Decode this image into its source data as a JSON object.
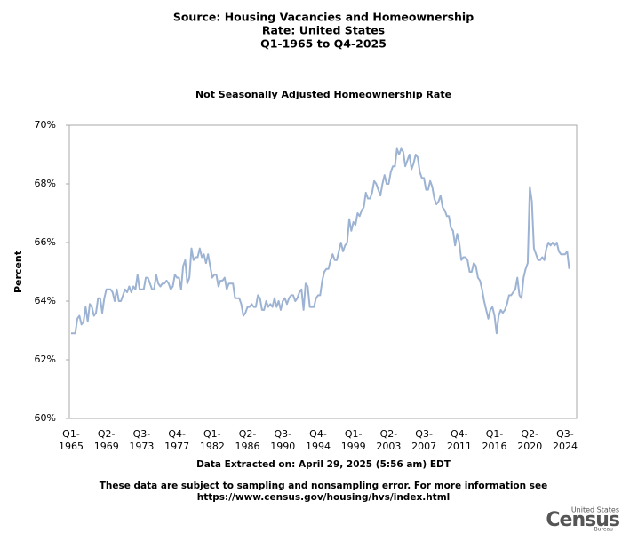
{
  "chart_data": {
    "type": "line",
    "title": [
      "Source: Housing Vacancies and Homeownership",
      "Rate: United States",
      "Q1-1965 to Q4-2025"
    ],
    "subtitle": "Not Seasonally Adjusted Homeownership Rate",
    "y_label": "Percent",
    "extracted": "Data Extracted on: April 29, 2025 (5:56 am) EDT",
    "note": [
      "These data are subject to sampling and nonsampling error. For more information see",
      "https://www.census.gov/housing/hvs/index.html"
    ],
    "logo": [
      "United States",
      "Census",
      "Bureau"
    ],
    "color": "#9db3d4",
    "ylim": [
      60,
      70
    ],
    "yticks": [
      {
        "value": 60,
        "label": "60%"
      },
      {
        "value": 62,
        "label": "62%"
      },
      {
        "value": 64,
        "label": "64%"
      },
      {
        "value": 66,
        "label": "66%"
      },
      {
        "value": 68,
        "label": "68%"
      },
      {
        "value": 70,
        "label": "70%"
      }
    ],
    "categories": [
      "Q1-1965",
      null,
      null,
      null,
      null,
      null,
      null,
      null,
      null,
      null,
      null,
      null,
      null,
      null,
      null,
      null,
      null,
      "Q2-1969",
      null,
      null,
      null,
      null,
      null,
      null,
      null,
      null,
      null,
      null,
      null,
      null,
      null,
      null,
      null,
      null,
      "Q3-1973",
      null,
      null,
      null,
      null,
      null,
      null,
      null,
      null,
      null,
      null,
      null,
      null,
      null,
      null,
      null,
      null,
      "Q4-1977",
      null,
      null,
      null,
      null,
      null,
      null,
      null,
      null,
      null,
      null,
      null,
      null,
      null,
      null,
      null,
      null,
      "Q1-1982",
      null,
      null,
      null,
      null,
      null,
      null,
      null,
      null,
      null,
      null,
      null,
      null,
      null,
      null,
      null,
      null,
      "Q2-1986",
      null,
      null,
      null,
      null,
      null,
      null,
      null,
      null,
      null,
      null,
      null,
      null,
      null,
      null,
      null,
      null,
      "Q3-1990",
      null,
      null,
      null,
      null,
      null,
      null,
      null,
      null,
      null,
      null,
      null,
      null,
      null,
      null,
      null,
      null,
      "Q4-1994",
      null,
      null,
      null,
      null,
      null,
      null,
      null,
      null,
      null,
      null,
      null,
      null,
      null,
      null,
      null,
      null,
      "Q1-1999",
      null,
      null,
      null,
      null,
      null,
      null,
      null,
      null,
      null,
      null,
      null,
      null,
      null,
      null,
      null,
      null,
      "Q2-2003",
      null,
      null,
      null,
      null,
      null,
      null,
      null,
      null,
      null,
      null,
      null,
      null,
      null,
      null,
      null,
      null,
      "Q3-2007",
      null,
      null,
      null,
      null,
      null,
      null,
      null,
      null,
      null,
      null,
      null,
      null,
      null,
      null,
      null,
      null,
      "Q4-2011",
      null,
      null,
      null,
      null,
      null,
      null,
      null,
      null,
      null,
      null,
      null,
      null,
      null,
      null,
      null,
      null,
      "Q1-2016",
      null,
      null,
      null,
      null,
      null,
      null,
      null,
      null,
      null,
      null,
      null,
      null,
      null,
      null,
      null,
      null,
      "Q2-2020",
      null,
      null,
      null,
      null,
      null,
      null,
      null,
      null,
      null,
      null,
      null,
      null,
      null,
      null,
      null,
      null,
      "Q3-2024",
      null,
      null
    ],
    "values": [
      62.9,
      62.9,
      62.9,
      63.4,
      63.5,
      63.2,
      63.3,
      63.8,
      63.3,
      63.9,
      63.8,
      63.5,
      63.6,
      64.1,
      64.1,
      63.6,
      64.1,
      64.4,
      64.4,
      64.4,
      64.3,
      64.0,
      64.4,
      64.0,
      64.0,
      64.2,
      64.4,
      64.3,
      64.5,
      64.3,
      64.5,
      64.4,
      64.9,
      64.4,
      64.4,
      64.4,
      64.8,
      64.8,
      64.6,
      64.4,
      64.4,
      64.9,
      64.6,
      64.5,
      64.6,
      64.6,
      64.7,
      64.6,
      64.4,
      64.5,
      64.9,
      64.8,
      64.8,
      64.4,
      65.2,
      65.4,
      64.6,
      64.8,
      65.8,
      65.4,
      65.5,
      65.5,
      65.8,
      65.5,
      65.6,
      65.3,
      65.6,
      65.2,
      64.8,
      64.9,
      64.9,
      64.5,
      64.7,
      64.7,
      64.8,
      64.4,
      64.6,
      64.6,
      64.6,
      64.1,
      64.1,
      64.1,
      63.9,
      63.5,
      63.6,
      63.8,
      63.8,
      63.9,
      63.8,
      63.8,
      64.2,
      64.1,
      63.7,
      63.7,
      64.0,
      63.8,
      63.9,
      63.8,
      64.1,
      63.8,
      64.0,
      63.7,
      64.0,
      64.1,
      63.9,
      64.1,
      64.2,
      64.2,
      64.0,
      64.1,
      64.3,
      64.4,
      63.7,
      64.6,
      64.5,
      63.8,
      63.8,
      63.8,
      64.1,
      64.2,
      64.2,
      64.7,
      65.0,
      65.1,
      65.1,
      65.4,
      65.6,
      65.4,
      65.4,
      65.7,
      66.0,
      65.7,
      65.9,
      66.0,
      66.8,
      66.4,
      66.7,
      66.6,
      67.0,
      66.9,
      67.1,
      67.2,
      67.7,
      67.5,
      67.5,
      67.7,
      68.1,
      68.0,
      67.8,
      67.6,
      68.0,
      68.3,
      68.0,
      68.0,
      68.4,
      68.6,
      68.6,
      69.2,
      69.0,
      69.2,
      69.1,
      68.6,
      68.8,
      69.0,
      68.5,
      68.7,
      69.0,
      68.9,
      68.4,
      68.2,
      68.2,
      67.8,
      67.8,
      68.1,
      67.9,
      67.5,
      67.3,
      67.4,
      67.6,
      67.2,
      67.1,
      66.9,
      66.9,
      66.5,
      66.4,
      65.9,
      66.3,
      66.0,
      65.4,
      65.5,
      65.5,
      65.4,
      65.0,
      65.0,
      65.3,
      65.2,
      64.8,
      64.7,
      64.4,
      64.0,
      63.7,
      63.4,
      63.7,
      63.8,
      63.5,
      62.9,
      63.5,
      63.7,
      63.6,
      63.7,
      63.9,
      64.2,
      64.2,
      64.3,
      64.4,
      64.8,
      64.2,
      64.1,
      64.8,
      65.1,
      65.3,
      67.9,
      67.4,
      65.8,
      65.6,
      65.4,
      65.4,
      65.5,
      65.4,
      65.8,
      66.0,
      65.9,
      66.0,
      65.9,
      66.0,
      65.7,
      65.6,
      65.6,
      65.6,
      65.7,
      65.1
    ]
  }
}
